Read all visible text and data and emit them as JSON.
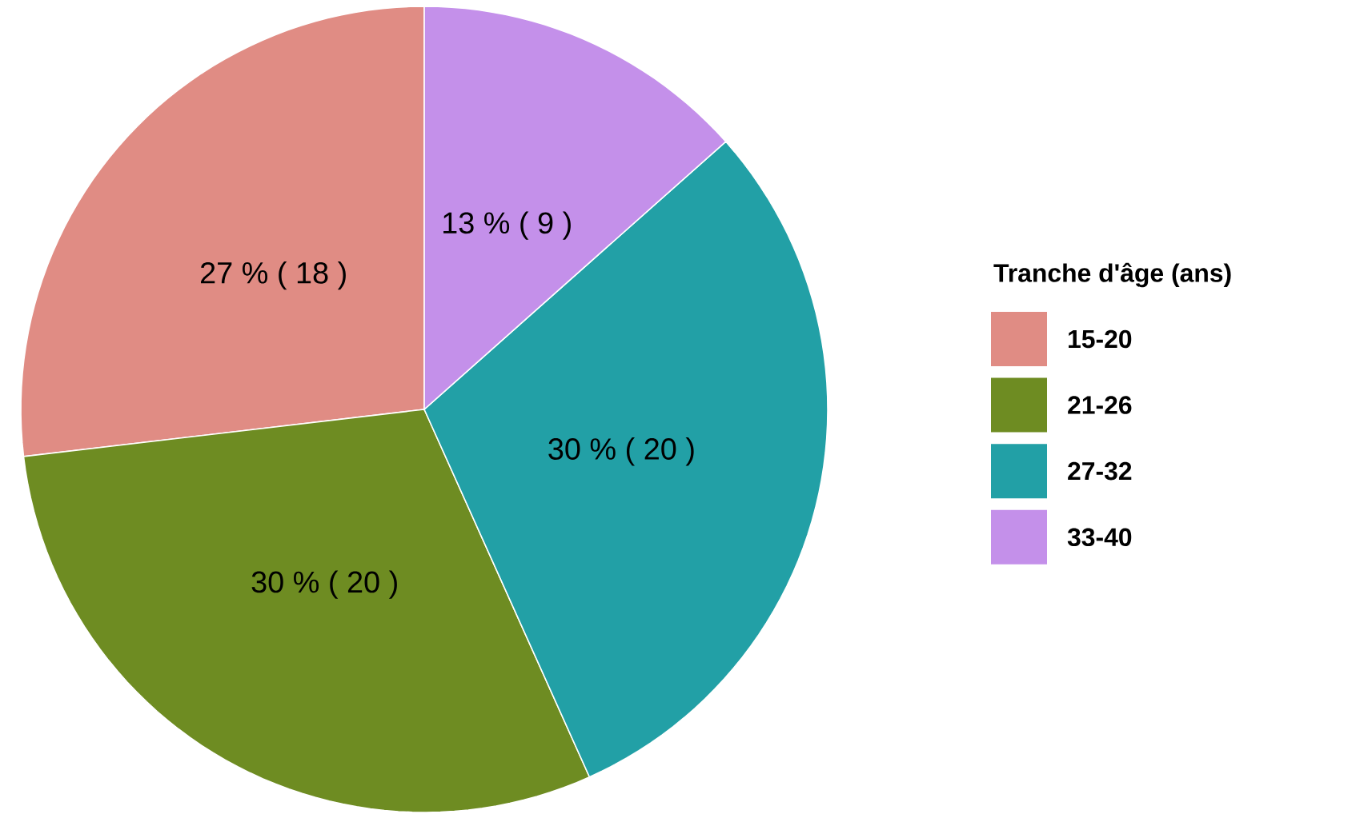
{
  "chart_data": {
    "type": "pie",
    "legend_title": "Tranche d'âge (ans)",
    "legend": "right",
    "categories": [
      "15-20",
      "21-26",
      "27-32",
      "33-40"
    ],
    "values": [
      18,
      20,
      20,
      9
    ],
    "colors": [
      "#e08c84",
      "#6e8c22",
      "#22a0a6",
      "#c490ea"
    ],
    "value_labels": [
      "27 % ( 18 )",
      "30 % ( 20 )",
      "30 % ( 20 )",
      "13 % ( 9 )"
    ]
  }
}
